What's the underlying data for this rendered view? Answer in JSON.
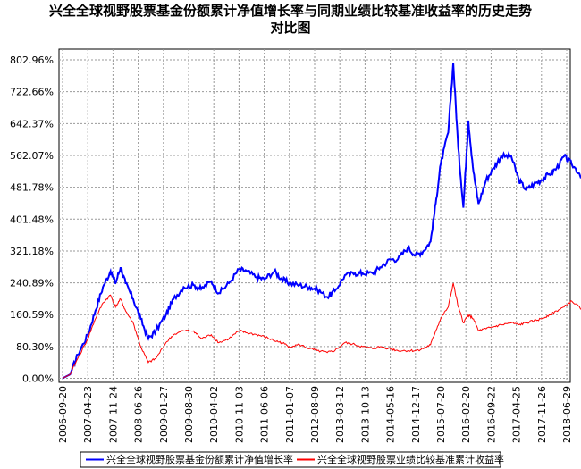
{
  "chart_data": {
    "type": "line",
    "title_lines": [
      "兴全全球视野股票基金份额累计净值增长率与同期业绩比较基准收益率的历史走势",
      "对比图"
    ],
    "xlabel": "",
    "ylabel": "",
    "y_ticks": [
      "802.96%",
      "722.66%",
      "642.37%",
      "562.07%",
      "481.78%",
      "401.48%",
      "321.18%",
      "240.89%",
      "160.59%",
      "80.30%",
      "0.00%"
    ],
    "y_tick_values": [
      802.96,
      722.66,
      642.37,
      562.07,
      481.78,
      401.48,
      321.18,
      240.89,
      160.59,
      80.3,
      0.0
    ],
    "ylim": [
      -10,
      830
    ],
    "x_ticks": [
      "2006-09-20",
      "2007-04-23",
      "2007-11-24",
      "2008-06-26",
      "2009-01-27",
      "2009-08-30",
      "2010-04-02",
      "2010-11-03",
      "2011-06-06",
      "2011-01-07",
      "2012-08-09",
      "2013-03-12",
      "2013-10-13",
      "2014-05-16",
      "2014-12-17",
      "2015-07-20",
      "2016-02-20",
      "2016-09-22",
      "2017-04-25",
      "2017-11-26",
      "2018-06-29"
    ],
    "grid": true,
    "legend_position": "bottom",
    "series": [
      {
        "name": "兴全全球视野股票基金份额累计净值增长率",
        "color": "#0000ff",
        "points": [
          [
            0,
            0
          ],
          [
            0.3,
            10
          ],
          [
            0.6,
            60
          ],
          [
            1,
            110
          ],
          [
            1.3,
            170
          ],
          [
            1.6,
            230
          ],
          [
            1.9,
            270
          ],
          [
            2.1,
            240
          ],
          [
            2.3,
            280
          ],
          [
            2.5,
            240
          ],
          [
            2.8,
            200
          ],
          [
            3.1,
            150
          ],
          [
            3.4,
            100
          ],
          [
            3.7,
            120
          ],
          [
            4.1,
            160
          ],
          [
            4.4,
            200
          ],
          [
            4.8,
            230
          ],
          [
            5.2,
            235
          ],
          [
            5.5,
            225
          ],
          [
            5.9,
            245
          ],
          [
            6.2,
            215
          ],
          [
            6.6,
            240
          ],
          [
            7,
            275
          ],
          [
            7.3,
            270
          ],
          [
            7.7,
            255
          ],
          [
            8,
            250
          ],
          [
            8.4,
            270
          ],
          [
            8.7,
            250
          ],
          [
            9,
            240
          ],
          [
            9.4,
            235
          ],
          [
            9.8,
            230
          ],
          [
            10.1,
            225
          ],
          [
            10.5,
            205
          ],
          [
            10.8,
            220
          ],
          [
            11.2,
            260
          ],
          [
            11.6,
            265
          ],
          [
            11.9,
            265
          ],
          [
            12.3,
            265
          ],
          [
            12.6,
            280
          ],
          [
            13,
            300
          ],
          [
            13.3,
            300
          ],
          [
            13.7,
            330
          ],
          [
            14,
            310
          ],
          [
            14.3,
            320
          ],
          [
            14.6,
            345
          ],
          [
            14.8,
            440
          ],
          [
            15,
            540
          ],
          [
            15.3,
            620
          ],
          [
            15.5,
            795
          ],
          [
            15.7,
            580
          ],
          [
            15.9,
            430
          ],
          [
            16.1,
            650
          ],
          [
            16.3,
            520
          ],
          [
            16.5,
            440
          ],
          [
            16.8,
            500
          ],
          [
            17.1,
            530
          ],
          [
            17.4,
            560
          ],
          [
            17.8,
            560
          ],
          [
            18.1,
            500
          ],
          [
            18.4,
            475
          ],
          [
            18.7,
            490
          ],
          [
            19,
            500
          ],
          [
            19.3,
            515
          ],
          [
            19.6,
            530
          ],
          [
            19.9,
            560
          ],
          [
            20.2,
            540
          ],
          [
            20.6,
            510
          ],
          [
            21,
            480
          ]
        ]
      },
      {
        "name": "兴全全球视野股票业绩比较基准累计收益率",
        "color": "#ff0000",
        "points": [
          [
            0,
            0
          ],
          [
            0.3,
            10
          ],
          [
            0.6,
            50
          ],
          [
            1,
            100
          ],
          [
            1.3,
            150
          ],
          [
            1.6,
            190
          ],
          [
            1.9,
            210
          ],
          [
            2.1,
            180
          ],
          [
            2.3,
            200
          ],
          [
            2.5,
            170
          ],
          [
            2.8,
            140
          ],
          [
            3.1,
            80
          ],
          [
            3.4,
            40
          ],
          [
            3.7,
            50
          ],
          [
            4.1,
            90
          ],
          [
            4.4,
            110
          ],
          [
            4.8,
            120
          ],
          [
            5.2,
            120
          ],
          [
            5.5,
            100
          ],
          [
            5.9,
            110
          ],
          [
            6.2,
            90
          ],
          [
            6.6,
            100
          ],
          [
            7,
            120
          ],
          [
            7.3,
            115
          ],
          [
            7.7,
            110
          ],
          [
            8,
            105
          ],
          [
            8.4,
            95
          ],
          [
            8.7,
            90
          ],
          [
            9,
            80
          ],
          [
            9.4,
            85
          ],
          [
            9.8,
            75
          ],
          [
            10.1,
            70
          ],
          [
            10.5,
            65
          ],
          [
            10.8,
            70
          ],
          [
            11.2,
            90
          ],
          [
            11.6,
            85
          ],
          [
            11.9,
            80
          ],
          [
            12.3,
            75
          ],
          [
            12.6,
            80
          ],
          [
            13,
            75
          ],
          [
            13.3,
            70
          ],
          [
            13.7,
            70
          ],
          [
            14,
            70
          ],
          [
            14.3,
            75
          ],
          [
            14.6,
            85
          ],
          [
            14.8,
            120
          ],
          [
            15,
            150
          ],
          [
            15.3,
            180
          ],
          [
            15.5,
            240
          ],
          [
            15.7,
            180
          ],
          [
            15.9,
            140
          ],
          [
            16.1,
            160
          ],
          [
            16.3,
            150
          ],
          [
            16.5,
            120
          ],
          [
            16.8,
            125
          ],
          [
            17.1,
            130
          ],
          [
            17.4,
            135
          ],
          [
            17.8,
            140
          ],
          [
            18.1,
            135
          ],
          [
            18.4,
            140
          ],
          [
            18.7,
            145
          ],
          [
            19,
            150
          ],
          [
            19.3,
            160
          ],
          [
            19.6,
            170
          ],
          [
            19.9,
            180
          ],
          [
            20.2,
            195
          ],
          [
            20.6,
            175
          ],
          [
            21,
            150
          ]
        ]
      }
    ]
  }
}
